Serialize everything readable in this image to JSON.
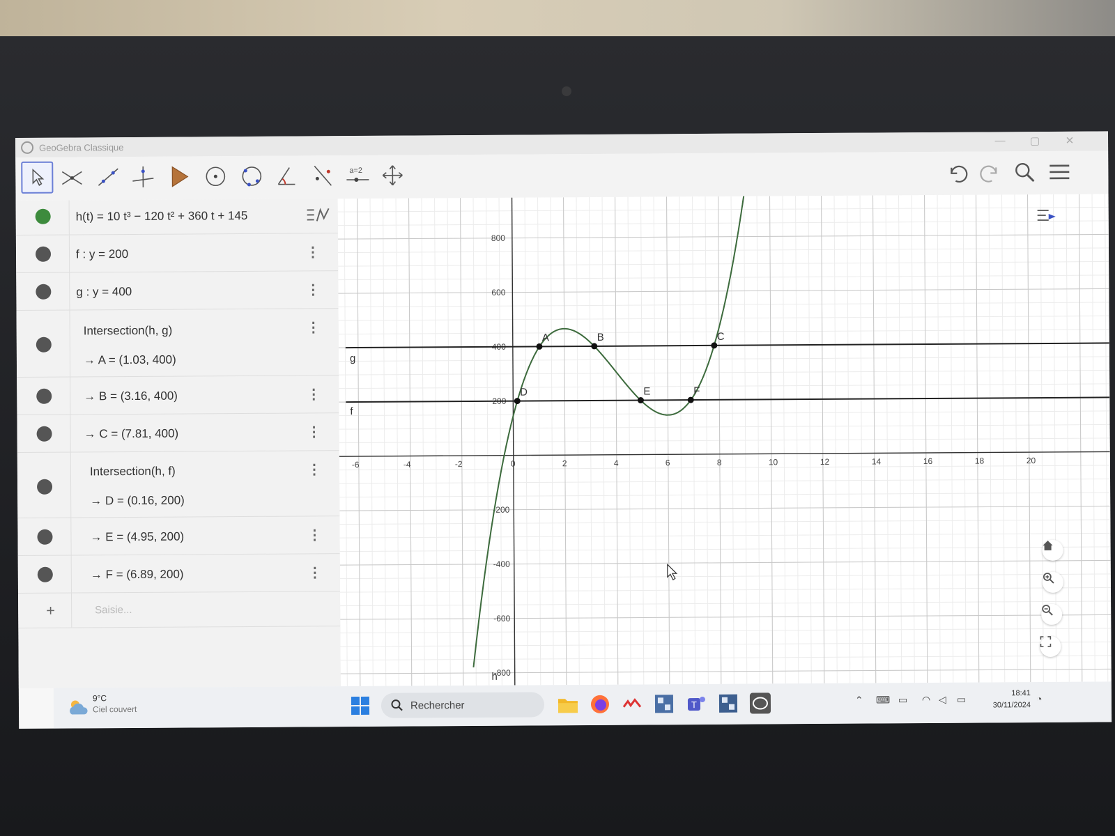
{
  "window": {
    "title": "GeoGebra Classique",
    "controls": [
      "—",
      "▢",
      "✕"
    ]
  },
  "toolbar": {
    "tools": [
      "move-tool",
      "point-tool",
      "line-tool",
      "perpendicular-tool",
      "polygon-tool",
      "circle-tool",
      "conic-tool",
      "angle-tool",
      "reflect-tool",
      "slider-tool",
      "move-view-tool"
    ],
    "slider_label": "a=2",
    "right": [
      "undo-icon",
      "redo-icon",
      "search-icon",
      "menu-icon"
    ]
  },
  "algebra": {
    "rows": [
      {
        "name": "function-h",
        "text": "h(t) = 10 t³ − 120 t² + 360 t + 145"
      },
      {
        "name": "line-f",
        "text": "f : y = 200"
      },
      {
        "name": "line-g",
        "text": "g : y = 400"
      },
      {
        "name": "intersection-hg",
        "text": "Intersection(h, g)",
        "sub": "→ A = (1.03, 400)"
      },
      {
        "name": "point-b",
        "text": "→ B = (3.16, 400)"
      },
      {
        "name": "point-c",
        "text": "→ C = (7.81, 400)"
      },
      {
        "name": "intersection-hf",
        "text": "Intersection(h, f)",
        "sub": "→ D = (0.16, 200)"
      },
      {
        "name": "point-e",
        "text": "→ E = (4.95, 200)"
      },
      {
        "name": "point-f",
        "text": "→ F = (6.89, 200)"
      }
    ],
    "input_placeholder": "Saisie..."
  },
  "graphics": {
    "colors": {
      "curve": "#3d6b3d",
      "lines": "#222222",
      "points": "#111111",
      "grid_major": "#c8c8c8",
      "grid_minor": "#ececec"
    },
    "x_ticks": [
      "-6",
      "-4",
      "-2",
      "0",
      "2",
      "4",
      "6",
      "8",
      "10",
      "12",
      "14",
      "16",
      "18",
      "20"
    ],
    "y_ticks": [
      "800",
      "600",
      "400",
      "200",
      "-200",
      "-400",
      "-600",
      "-800"
    ],
    "labels": {
      "g": "g",
      "f": "f",
      "h": "h"
    },
    "points": [
      {
        "label": "A",
        "x": 1.03,
        "y": 400
      },
      {
        "label": "B",
        "x": 3.16,
        "y": 400
      },
      {
        "label": "C",
        "x": 7.81,
        "y": 400
      },
      {
        "label": "D",
        "x": 0.16,
        "y": 200
      },
      {
        "label": "E",
        "x": 4.95,
        "y": 200
      },
      {
        "label": "F",
        "x": 6.89,
        "y": 200
      }
    ],
    "view_buttons": [
      "home-icon",
      "zoom-in-icon",
      "zoom-out-icon",
      "fullscreen-icon"
    ]
  },
  "taskbar": {
    "weather_temp": "9°C",
    "weather_text": "Ciel couvert",
    "search_label": "Rechercher",
    "time": "18:41",
    "date": "30/11/2024"
  }
}
